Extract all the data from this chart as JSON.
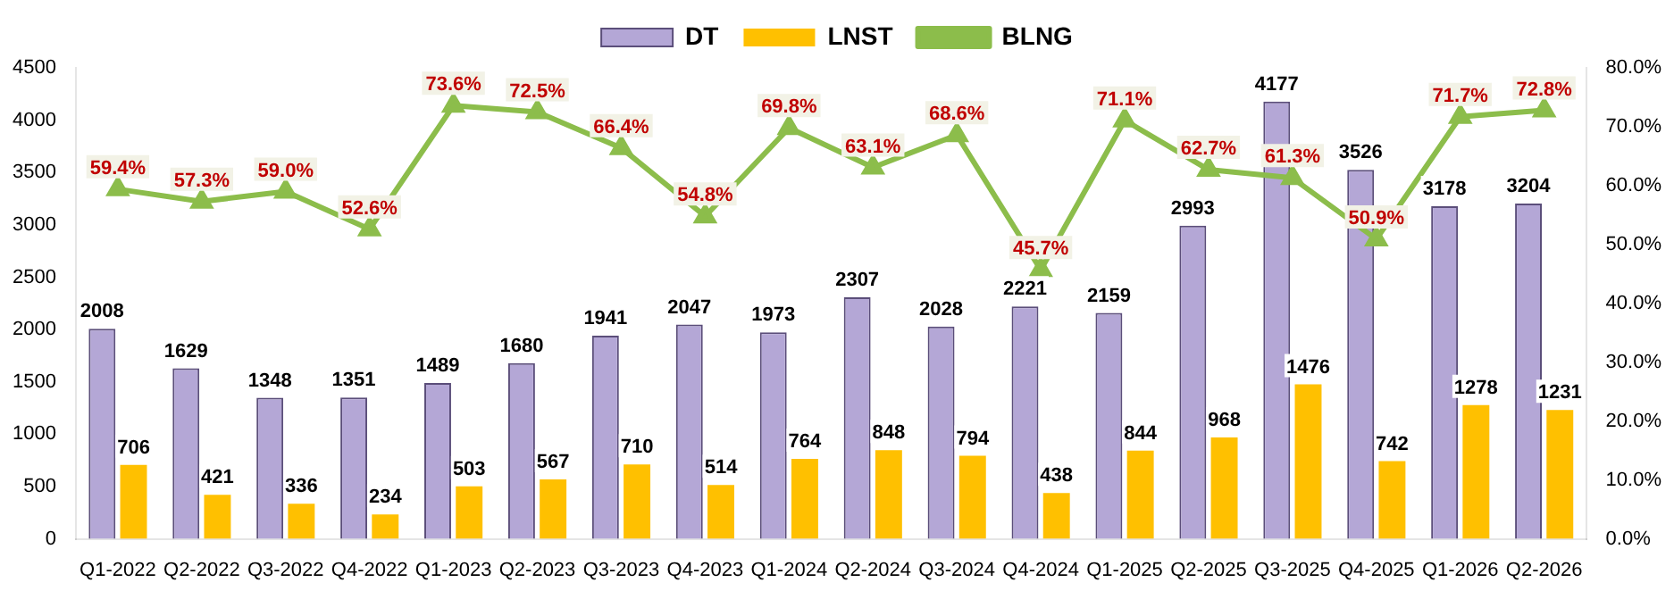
{
  "chart_data": {
    "type": "bar",
    "categories": [
      "Q1-2022",
      "Q2-2022",
      "Q3-2022",
      "Q4-2022",
      "Q1-2023",
      "Q2-2023",
      "Q3-2023",
      "Q4-2023",
      "Q1-2024",
      "Q2-2024",
      "Q3-2024",
      "Q4-2024",
      "Q1-2025",
      "Q2-2025",
      "Q3-2025",
      "Q4-2025",
      "Q1-2026",
      "Q2-2026"
    ],
    "series": [
      {
        "name": "DT",
        "color": "#b4a7d6",
        "values": [
          2008,
          1629,
          1348,
          1351,
          1489,
          1680,
          1941,
          2047,
          1973,
          2307,
          2028,
          2221,
          2159,
          2993,
          4177,
          3526,
          3178,
          3204
        ],
        "value_labels": [
          "2008",
          "1629",
          "1348",
          "1351",
          "1489",
          "1680",
          "1941",
          "2047",
          "1973",
          "2307",
          "2028",
          "2221",
          "2159",
          "2993",
          "4177",
          "3526",
          "3178",
          "3204"
        ]
      },
      {
        "name": "LNST",
        "color": "#ffc000",
        "values": [
          706,
          421,
          336,
          234,
          503,
          567,
          710,
          514,
          764,
          848,
          794,
          438,
          844,
          968,
          1476,
          742,
          1278,
          1231
        ],
        "value_labels": [
          "706",
          "421",
          "336",
          "234",
          "503",
          "567",
          "710",
          "514",
          "764",
          "848",
          "794",
          "438",
          "844",
          "968",
          "1476",
          "742",
          "1278",
          "1231"
        ]
      },
      {
        "name": "BLNG",
        "type": "line",
        "axis": "y2",
        "color": "#8cbd4b",
        "values": [
          59.4,
          57.3,
          59.0,
          52.6,
          73.6,
          72.5,
          66.4,
          54.8,
          69.8,
          63.1,
          68.6,
          45.7,
          71.1,
          62.7,
          61.3,
          50.9,
          71.7,
          72.8
        ],
        "value_labels": [
          "59.4%",
          "57.3%",
          "59.0%",
          "52.6%",
          "73.6%",
          "72.5%",
          "66.4%",
          "54.8%",
          "69.8%",
          "63.1%",
          "68.6%",
          "45.7%",
          "71.1%",
          "62.7%",
          "61.3%",
          "50.9%",
          "71.7%",
          "72.8%"
        ]
      }
    ],
    "ylim": [
      0,
      4500
    ],
    "yticks": [
      0,
      500,
      1000,
      1500,
      2000,
      2500,
      3000,
      3500,
      4000,
      4500
    ],
    "y2lim": [
      0,
      80
    ],
    "y2ticks": [
      {
        "value": 0,
        "label": "0.0%"
      },
      {
        "value": 10,
        "label": "10.0%"
      },
      {
        "value": 20,
        "label": "20.0%"
      },
      {
        "value": 30,
        "label": "30.0%"
      },
      {
        "value": 40,
        "label": "40.0%"
      },
      {
        "value": 50,
        "label": "50.0%"
      },
      {
        "value": 60,
        "label": "60.0%"
      },
      {
        "value": 70,
        "label": "70.0%"
      },
      {
        "value": 80,
        "label": "80.0%"
      }
    ],
    "grid": false,
    "legend": "top",
    "marker": "triangle",
    "line_style": "solid"
  }
}
